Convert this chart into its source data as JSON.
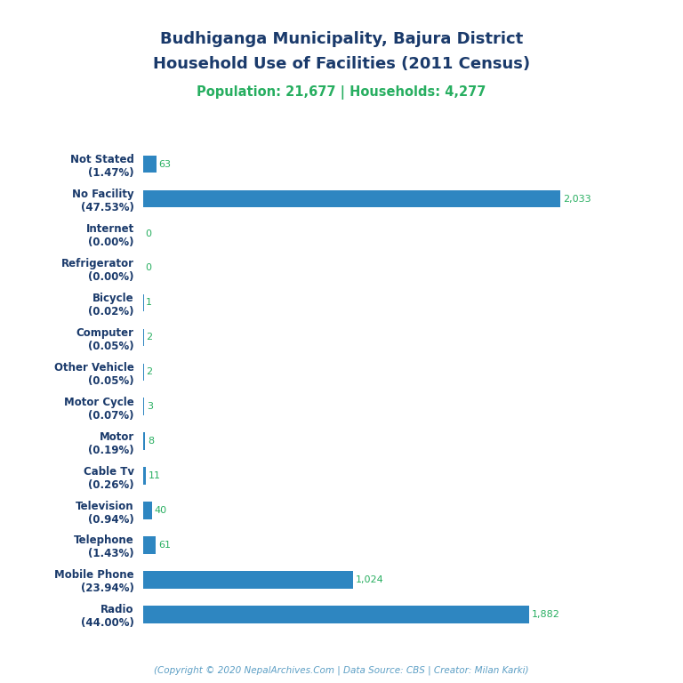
{
  "title_line1": "Budhiganga Municipality, Bajura District",
  "title_line2": "Household Use of Facilities (2011 Census)",
  "subtitle": "Population: 21,677 | Households: 4,277",
  "footer": "(Copyright © 2020 NepalArchives.Com | Data Source: CBS | Creator: Milan Karki)",
  "categories": [
    "Not Stated\n(1.47%)",
    "No Facility\n(47.53%)",
    "Internet\n(0.00%)",
    "Refrigerator\n(0.00%)",
    "Bicycle\n(0.02%)",
    "Computer\n(0.05%)",
    "Other Vehicle\n(0.05%)",
    "Motor Cycle\n(0.07%)",
    "Motor\n(0.19%)",
    "Cable Tv\n(0.26%)",
    "Television\n(0.94%)",
    "Telephone\n(1.43%)",
    "Mobile Phone\n(23.94%)",
    "Radio\n(44.00%)"
  ],
  "values": [
    63,
    2033,
    0,
    0,
    1,
    2,
    2,
    3,
    8,
    11,
    40,
    61,
    1024,
    1882
  ],
  "value_labels": [
    "63",
    "2,033",
    "0",
    "0",
    "1",
    "2",
    "2",
    "3",
    "8",
    "11",
    "40",
    "61",
    "1,024",
    "1,882"
  ],
  "bar_color": "#2e86c1",
  "title_color": "#1a3a6b",
  "subtitle_color": "#27ae60",
  "value_color": "#27ae60",
  "footer_color": "#5d9fc5",
  "ylabel_color": "#1a3a6b",
  "background_color": "#ffffff",
  "figsize": [
    7.68,
    7.68
  ],
  "dpi": 100
}
